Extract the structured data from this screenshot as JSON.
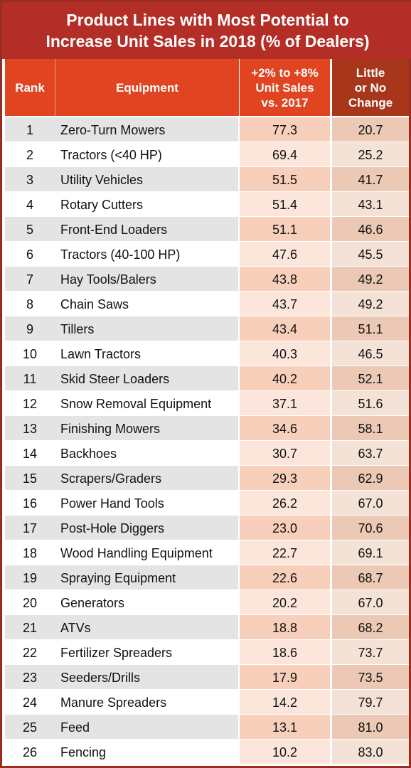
{
  "title": {
    "line1": "Product Lines with Most Potential to",
    "line2": "Increase Unit Sales in 2018 (% of Dealers)"
  },
  "chart_data": {
    "type": "table",
    "title": "Product Lines with Most Potential to Increase Unit Sales in 2018 (% of Dealers)",
    "columns": [
      "Rank",
      "Equipment",
      "+2% to +8%\nUnit Sales\nvs. 2017",
      "Little\nor No\nChange"
    ],
    "rows": [
      {
        "rank": "1",
        "equipment": "Zero-Turn Mowers",
        "increase": "77.3",
        "little": "20.7"
      },
      {
        "rank": "2",
        "equipment": "Tractors (<40 HP)",
        "increase": "69.4",
        "little": "25.2"
      },
      {
        "rank": "3",
        "equipment": "Utility Vehicles",
        "increase": "51.5",
        "little": "41.7"
      },
      {
        "rank": "4",
        "equipment": "Rotary Cutters",
        "increase": "51.4",
        "little": "43.1"
      },
      {
        "rank": "5",
        "equipment": "Front-End Loaders",
        "increase": "51.1",
        "little": "46.6"
      },
      {
        "rank": "6",
        "equipment": "Tractors (40-100 HP)",
        "increase": "47.6",
        "little": "45.5"
      },
      {
        "rank": "7",
        "equipment": "Hay Tools/Balers",
        "increase": "43.8",
        "little": "49.2"
      },
      {
        "rank": "8",
        "equipment": "Chain Saws",
        "increase": "43.7",
        "little": "49.2"
      },
      {
        "rank": "9",
        "equipment": "Tillers",
        "increase": "43.4",
        "little": "51.1"
      },
      {
        "rank": "10",
        "equipment": "Lawn Tractors",
        "increase": "40.3",
        "little": "46.5"
      },
      {
        "rank": "11",
        "equipment": "Skid Steer Loaders",
        "increase": "40.2",
        "little": "52.1"
      },
      {
        "rank": "12",
        "equipment": "Snow Removal Equipment",
        "increase": "37.1",
        "little": "51.6"
      },
      {
        "rank": "13",
        "equipment": "Finishing Mowers",
        "increase": "34.6",
        "little": "58.1"
      },
      {
        "rank": "14",
        "equipment": "Backhoes",
        "increase": "30.7",
        "little": "63.7"
      },
      {
        "rank": "15",
        "equipment": "Scrapers/Graders",
        "increase": "29.3",
        "little": "62.9"
      },
      {
        "rank": "16",
        "equipment": "Power Hand Tools",
        "increase": "26.2",
        "little": "67.0"
      },
      {
        "rank": "17",
        "equipment": "Post-Hole Diggers",
        "increase": "23.0",
        "little": "70.6"
      },
      {
        "rank": "18",
        "equipment": "Wood Handling Equipment",
        "increase": "22.7",
        "little": "69.1"
      },
      {
        "rank": "19",
        "equipment": "Spraying Equipment",
        "increase": "22.6",
        "little": "68.7"
      },
      {
        "rank": "20",
        "equipment": "Generators",
        "increase": "20.2",
        "little": "67.0"
      },
      {
        "rank": "21",
        "equipment": "ATVs",
        "increase": "18.8",
        "little": "68.2"
      },
      {
        "rank": "22",
        "equipment": "Fertilizer Spreaders",
        "increase": "18.6",
        "little": "73.7"
      },
      {
        "rank": "23",
        "equipment": "Seeders/Drills",
        "increase": "17.9",
        "little": "73.5"
      },
      {
        "rank": "24",
        "equipment": "Manure Spreaders",
        "increase": "14.2",
        "little": "79.7"
      },
      {
        "rank": "25",
        "equipment": "Feed",
        "increase": "13.1",
        "little": "81.0"
      },
      {
        "rank": "26",
        "equipment": "Fencing",
        "increase": "10.2",
        "little": "83.0"
      }
    ]
  },
  "colors": {
    "title_bg": "#b22e26",
    "header_bg": "#e04420",
    "header_dark_bg": "#a8361b",
    "accent_light": "#fce6db",
    "accent_mid": "#f8cfba"
  }
}
